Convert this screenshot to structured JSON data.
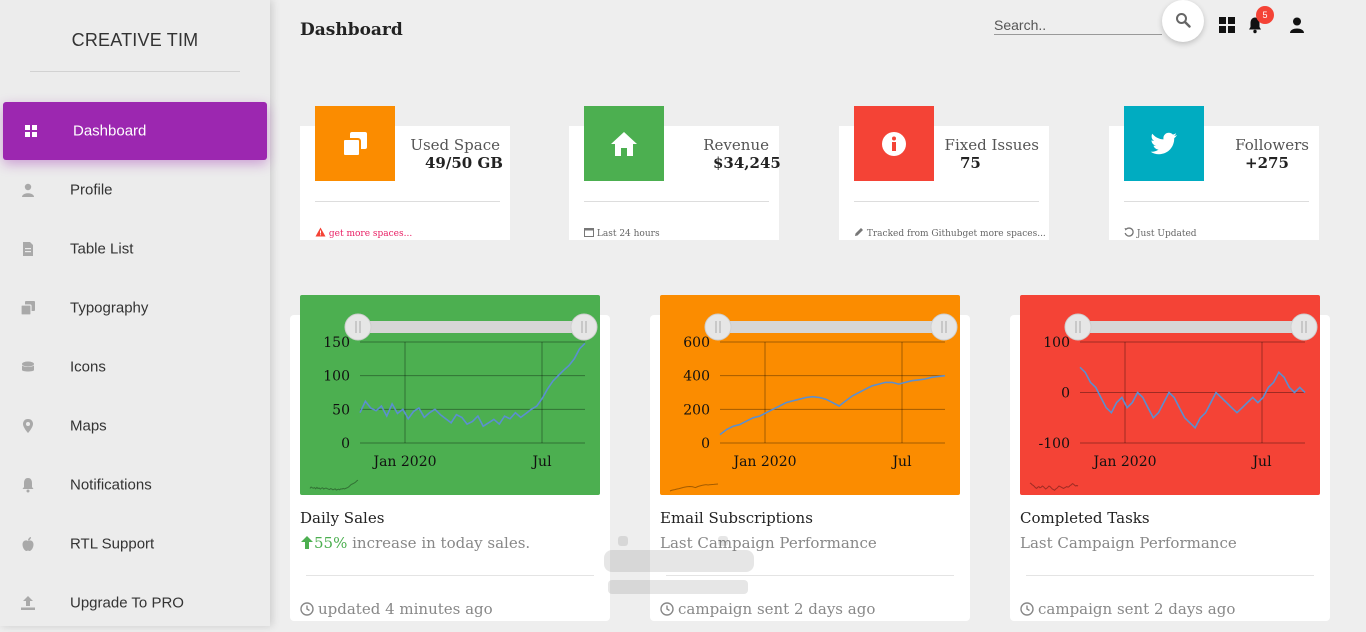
{
  "sidebar": {
    "brand": "CREATIVE TIM",
    "items": [
      {
        "label": "Dashboard",
        "icon": "dashboard-icon",
        "active": true
      },
      {
        "label": "Profile",
        "icon": "person-icon"
      },
      {
        "label": "Table List",
        "icon": "document-icon"
      },
      {
        "label": "Typography",
        "icon": "copy-icon"
      },
      {
        "label": "Icons",
        "icon": "database-icon"
      },
      {
        "label": "Maps",
        "icon": "map-pin-icon"
      },
      {
        "label": "Notifications",
        "icon": "bell-icon"
      },
      {
        "label": "RTL Support",
        "icon": "apple-icon"
      },
      {
        "label": "Upgrade To PRO",
        "icon": "upload-icon"
      }
    ]
  },
  "header": {
    "title": "Dashboard",
    "search_placeholder": "Search..",
    "notification_count": "5"
  },
  "stats": [
    {
      "label": "Used Space",
      "value": "49/50 GB",
      "footer": "get more spaces...",
      "color": "#fb8c00",
      "footer_color": "#e91e63",
      "icon": "copy-icon",
      "footer_icon": "warning-icon"
    },
    {
      "label": "Revenue",
      "value": "$34,245",
      "footer": "Last 24 hours",
      "color": "#4caf50",
      "footer_color": "#666666",
      "icon": "home-icon",
      "footer_icon": "calendar-icon"
    },
    {
      "label": "Fixed Issues",
      "value": "75",
      "footer": "Tracked from Githubget more spaces...",
      "color": "#f44336",
      "footer_color": "#666666",
      "icon": "info-icon",
      "footer_icon": "pencil-icon"
    },
    {
      "label": "Followers",
      "value": "+275",
      "footer": "Just Updated",
      "color": "#00acc1",
      "footer_color": "#666666",
      "icon": "twitter-icon",
      "footer_icon": "refresh-icon"
    }
  ],
  "charts": [
    {
      "title": "Daily Sales",
      "subtitle_highlight": "55%",
      "subtitle": "increase in today sales.",
      "footer": "updated 4 minutes ago",
      "color": "#4caf50",
      "chart_data": {
        "type": "line",
        "x_ticks": [
          "Jan 2020",
          "Jul"
        ],
        "y_ticks": [
          0,
          50,
          100,
          150
        ],
        "ylim": [
          0,
          150
        ],
        "series": [
          {
            "values": [
              45,
              62,
              52,
              48,
              55,
              40,
              58,
              44,
              50,
              36,
              47,
              52,
              38,
              45,
              50,
              42,
              36,
              30,
              42,
              38,
              28,
              32,
              40,
              25,
              30,
              35,
              28,
              40,
              36,
              45,
              38,
              44,
              50,
              55,
              66,
              80,
              92,
              100,
              108,
              115,
              125,
              140,
              148
            ]
          }
        ]
      }
    },
    {
      "title": "Email Subscriptions",
      "subtitle_highlight": "",
      "subtitle": "Last Campaign Performance",
      "footer": "campaign sent 2 days ago",
      "color": "#fb8c00",
      "chart_data": {
        "type": "line",
        "x_ticks": [
          "Jan 2020",
          "Jul"
        ],
        "y_ticks": [
          0,
          200,
          400,
          600
        ],
        "ylim": [
          0,
          600
        ],
        "series": [
          {
            "values": [
              50,
              80,
              100,
              110,
              130,
              150,
              160,
              180,
              200,
              220,
              240,
              250,
              260,
              270,
              275,
              270,
              260,
              240,
              220,
              250,
              280,
              300,
              320,
              340,
              350,
              360,
              360,
              350,
              360,
              370,
              375,
              380,
              390,
              395,
              400
            ]
          }
        ]
      }
    },
    {
      "title": "Completed Tasks",
      "subtitle_highlight": "",
      "subtitle": "Last Campaign Performance",
      "footer": "campaign sent 2 days ago",
      "color": "#f44336",
      "chart_data": {
        "type": "line",
        "x_ticks": [
          "Jan 2020",
          "Jul"
        ],
        "y_ticks": [
          -100,
          0,
          100
        ],
        "ylim": [
          -100,
          100
        ],
        "series": [
          {
            "values": [
              50,
              40,
              20,
              10,
              -10,
              -30,
              -40,
              -20,
              -10,
              -30,
              -20,
              0,
              -10,
              -30,
              -50,
              -40,
              -20,
              0,
              -10,
              -30,
              -50,
              -60,
              -70,
              -50,
              -40,
              -20,
              0,
              -10,
              -20,
              -30,
              -40,
              -30,
              -20,
              -10,
              -20,
              -10,
              10,
              20,
              40,
              30,
              10,
              0,
              10,
              0
            ]
          }
        ]
      }
    }
  ]
}
